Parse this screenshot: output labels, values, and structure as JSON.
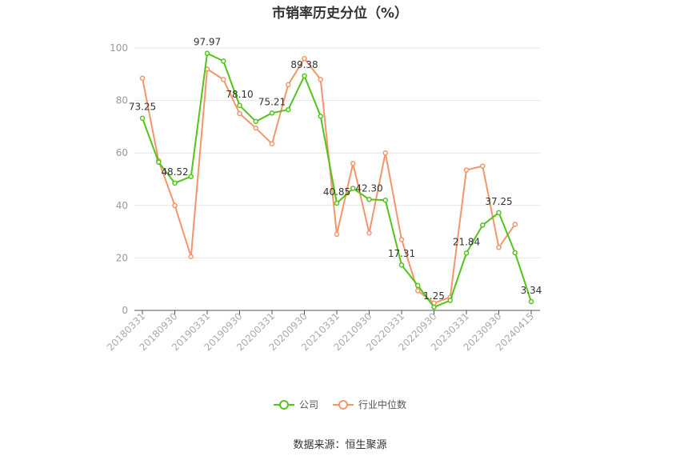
{
  "chart_data": {
    "type": "line",
    "title": "市销率历史分位（%）",
    "source": "数据来源：恒生聚源",
    "ylim": [
      0,
      100
    ],
    "yticks": [
      0,
      20,
      40,
      60,
      80,
      100
    ],
    "x_tick_labels": [
      "20180331",
      "20180930",
      "20190331",
      "20190930",
      "20200331",
      "20200930",
      "20210331",
      "20210930",
      "20220331",
      "20220930",
      "20230331",
      "20230930",
      "20240415"
    ],
    "x": [
      "20180331",
      "20180630",
      "20180930",
      "20181231",
      "20190331",
      "20190630",
      "20190930",
      "20191231",
      "20200331",
      "20200630",
      "20200930",
      "20201231",
      "20210331",
      "20210630",
      "20210930",
      "20211231",
      "20220331",
      "20220630",
      "20220930",
      "20221231",
      "20230331",
      "20230630",
      "20230930",
      "20231231",
      "20240415"
    ],
    "series": [
      {
        "name": "公司",
        "color": "#52c41a",
        "values": [
          73.25,
          56.5,
          48.52,
          51.0,
          97.97,
          95.0,
          78.1,
          72.0,
          75.21,
          76.5,
          89.38,
          74.0,
          40.85,
          46.5,
          42.3,
          42.0,
          17.31,
          9.5,
          1.25,
          3.8,
          21.84,
          32.5,
          37.25,
          22.0,
          3.34
        ]
      },
      {
        "name": "行业中位数",
        "color": "#f4956a",
        "values": [
          88.5,
          57.0,
          40.0,
          20.5,
          92.0,
          88.0,
          75.0,
          69.5,
          63.5,
          86.0,
          96.0,
          88.0,
          29.0,
          56.0,
          29.5,
          60.0,
          27.0,
          7.5,
          2.8,
          5.0,
          53.5,
          55.0,
          24.0,
          32.8,
          null
        ]
      }
    ],
    "data_labels": [
      {
        "index": 0,
        "text": "73.25"
      },
      {
        "index": 2,
        "text": "48.52"
      },
      {
        "index": 4,
        "text": "97.97"
      },
      {
        "index": 6,
        "text": "78.10"
      },
      {
        "index": 8,
        "text": "75.21"
      },
      {
        "index": 10,
        "text": "89.38"
      },
      {
        "index": 12,
        "text": "40.85"
      },
      {
        "index": 14,
        "text": "42.30"
      },
      {
        "index": 16,
        "text": "17.31"
      },
      {
        "index": 18,
        "text": "1.25"
      },
      {
        "index": 20,
        "text": "21.84"
      },
      {
        "index": 22,
        "text": "37.25"
      },
      {
        "index": 24,
        "text": "3.34"
      }
    ],
    "legend_position": "bottom-center",
    "grid": true
  }
}
